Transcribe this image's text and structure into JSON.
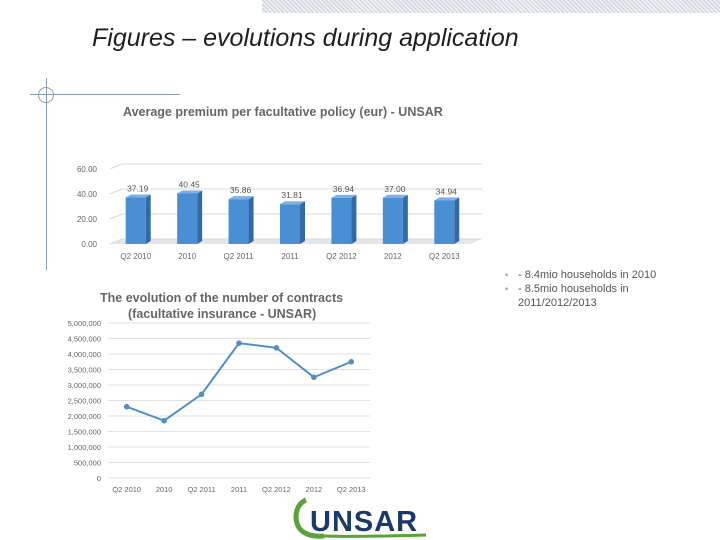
{
  "title": "Figures – evolutions during application",
  "bullets": [
    "- 8.4mio households in 2010",
    "- 8.5mio households in 2011/2012/2013"
  ],
  "logo_text": "UNSAR",
  "colors": {
    "bar": "#4a8fd4",
    "bar_side": "#336aa6",
    "line": "#4f8fc9",
    "logo_green": "#5aa33a",
    "logo_navy": "#1b3a6b"
  },
  "chart_data": [
    {
      "type": "bar",
      "title": "Average premium per facultative policy (eur) - UNSAR",
      "categories": [
        "Q2 2010",
        "2010",
        "Q2 2011",
        "2011",
        "Q2 2012",
        "2012",
        "Q2 2013"
      ],
      "values": [
        37.19,
        40.45,
        35.86,
        31.81,
        36.94,
        37.0,
        34.94
      ],
      "value_labels": [
        "37.19",
        "40.45",
        "35.86",
        "31.81",
        "36.94",
        "37.00",
        "34.94"
      ],
      "y_ticks": [
        "0.00",
        "20.00",
        "40.00",
        "60.00"
      ],
      "ylim": [
        0,
        60
      ],
      "grid": true
    },
    {
      "type": "line",
      "title": [
        "The evolution of the number of contracts",
        "(facultative insurance - UNSAR)"
      ],
      "categories": [
        "Q2 2010",
        "2010",
        "Q2 2011",
        "2011",
        "Q2 2012",
        "2012",
        "Q2 2013"
      ],
      "values": [
        2300000,
        1850000,
        2700000,
        4350000,
        4200000,
        3250000,
        3750000
      ],
      "y_ticks": [
        "0",
        "500,000",
        "1,000,000",
        "1,500,000",
        "2,000,000",
        "2,500,000",
        "3,000,000",
        "3,500,000",
        "4,000,000",
        "4,500,000",
        "5,000,000"
      ],
      "ylim": [
        0,
        5000000
      ],
      "grid": true
    }
  ]
}
